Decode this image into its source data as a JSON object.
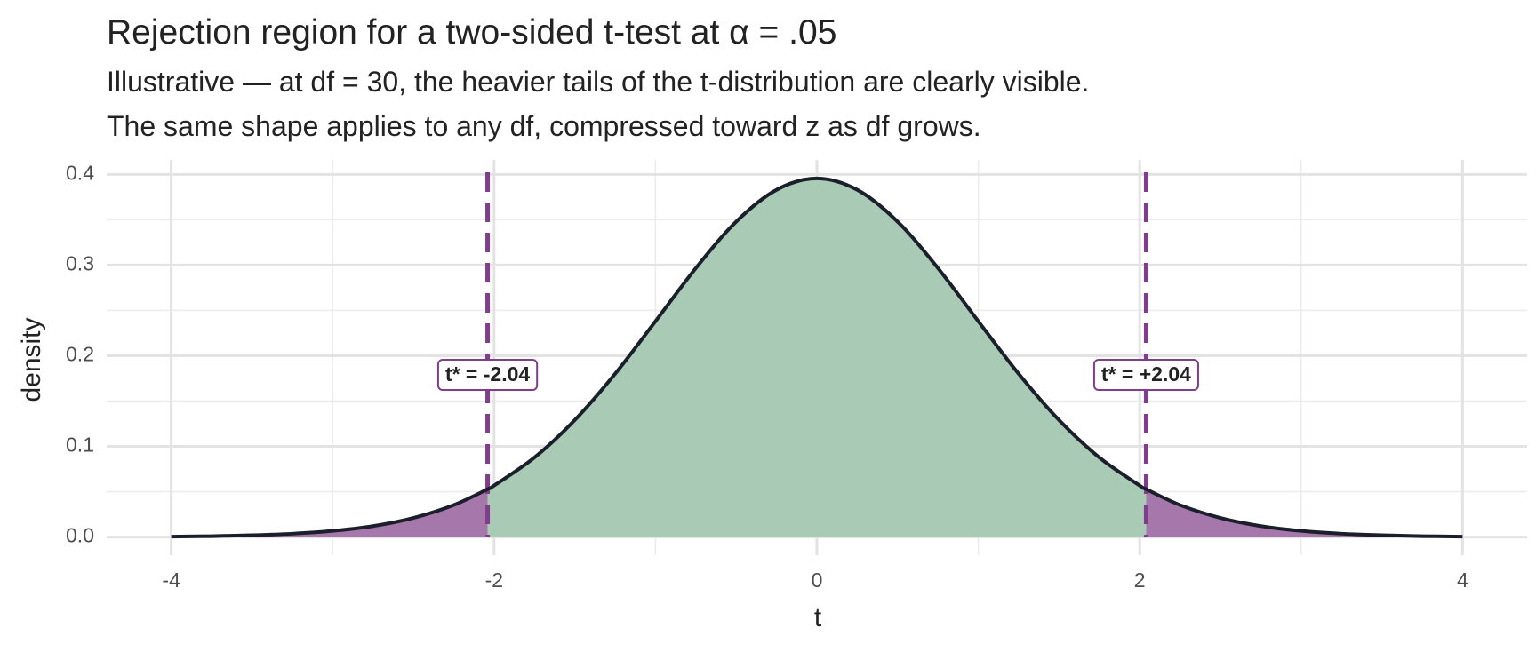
{
  "chart_data": {
    "type": "density",
    "title": "Rejection region for a two-sided t-test at α = .05",
    "subtitle": [
      "Illustrative — at df = 30, the heavier tails of the t-distribution are clearly visible.",
      "The same shape applies to any df, compressed toward z as df grows."
    ],
    "x_label": "t",
    "y_label": "density",
    "x": [
      -4,
      -3.75,
      -3.5,
      -3.25,
      -3,
      -2.75,
      -2.5,
      -2.25,
      -2.04,
      -2,
      -1.75,
      -1.5,
      -1.25,
      -1,
      -0.75,
      -0.5,
      -0.25,
      0,
      0.25,
      0.5,
      0.75,
      1,
      1.25,
      1.5,
      1.75,
      2,
      2.04,
      2.25,
      2.5,
      2.75,
      3,
      3.25,
      3.5,
      3.75,
      4
    ],
    "density": [
      0.0005,
      0.001,
      0.002,
      0.0037,
      0.0068,
      0.0121,
      0.0211,
      0.0353,
      0.0528,
      0.0568,
      0.0877,
      0.129,
      0.1801,
      0.238,
      0.2966,
      0.3479,
      0.383,
      0.3956,
      0.383,
      0.3479,
      0.2966,
      0.238,
      0.1801,
      0.129,
      0.0877,
      0.0568,
      0.0528,
      0.0353,
      0.0211,
      0.0121,
      0.0068,
      0.0037,
      0.002,
      0.001,
      0.0005
    ],
    "critical_values": [
      {
        "value": -2.04,
        "label": "t* = -2.04"
      },
      {
        "value": 2.04,
        "label": "t* = +2.04"
      }
    ],
    "xlim": [
      -4.4,
      4.4
    ],
    "ylim": [
      -0.02,
      0.416
    ],
    "xticks": [
      -4,
      -2,
      0,
      2,
      4
    ],
    "yticks": [
      {
        "value": 0,
        "label": "0.0"
      },
      {
        "value": 0.1,
        "label": "0.1"
      },
      {
        "value": 0.2,
        "label": "0.2"
      },
      {
        "value": 0.3,
        "label": "0.3"
      },
      {
        "value": 0.4,
        "label": "0.4"
      }
    ],
    "x_minor": [
      -3,
      -1,
      1,
      3
    ],
    "y_minor": [
      0.05,
      0.15,
      0.25,
      0.35
    ],
    "grid": true,
    "curve_color": "#1b1f2b",
    "accept_color": "#a9cab5",
    "reject_color": "#a677aa",
    "critical_color": "#7f3d8c"
  }
}
